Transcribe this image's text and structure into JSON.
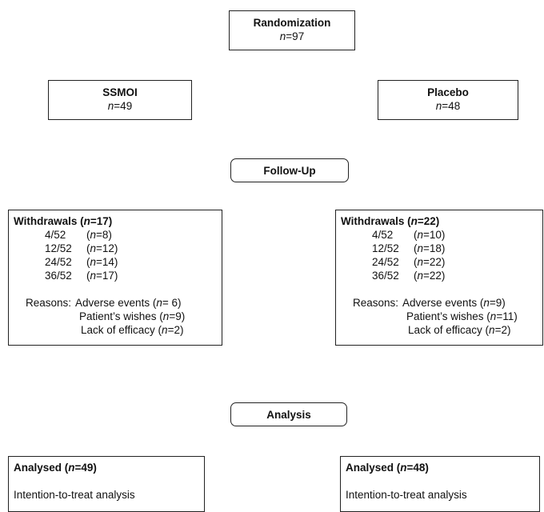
{
  "randomization": {
    "title": "Randomization",
    "n_prefix": "n",
    "n_suffix": "=97"
  },
  "arms": [
    {
      "title": "SSMOI",
      "n_prefix": "n",
      "n_suffix": "=49",
      "withdrawals": {
        "label": "Withdrawals (",
        "n_prefix": "n",
        "n_suffix": "=17)",
        "rows": [
          {
            "time": "4/52",
            "open": "(",
            "n_prefix": "n",
            "n_suffix": "=8)"
          },
          {
            "time": "12/52",
            "open": "(",
            "n_prefix": "n",
            "n_suffix": "=12)"
          },
          {
            "time": "24/52",
            "open": "(",
            "n_prefix": "n",
            "n_suffix": "=14)"
          },
          {
            "time": "36/52",
            "open": "(",
            "n_prefix": "n",
            "n_suffix": "=17)"
          }
        ],
        "reasons_label": "Reasons:",
        "reasons": [
          {
            "text": "Adverse events (",
            "n_prefix": "n",
            "n_suffix": "= 6)"
          },
          {
            "text": "Patient’s wishes (",
            "n_prefix": "n",
            "n_suffix": "=9)"
          },
          {
            "text": "Lack of efficacy (",
            "n_prefix": "n",
            "n_suffix": "=2)"
          }
        ]
      },
      "analysed": {
        "label": "Analysed (",
        "n_prefix": "n",
        "n_suffix": "=49)",
        "text": "Intention-to-treat analysis"
      }
    },
    {
      "title": "Placebo",
      "n_prefix": "n",
      "n_suffix": "=48",
      "withdrawals": {
        "label": "Withdrawals (",
        "n_prefix": "n",
        "n_suffix": "=22)",
        "rows": [
          {
            "time": "4/52",
            "open": "(",
            "n_prefix": "n",
            "n_suffix": "=10)"
          },
          {
            "time": "12/52",
            "open": "(",
            "n_prefix": "n",
            "n_suffix": "=18)"
          },
          {
            "time": "24/52",
            "open": "(",
            "n_prefix": "n",
            "n_suffix": "=22)"
          },
          {
            "time": "36/52",
            "open": "(",
            "n_prefix": "n",
            "n_suffix": "=22)"
          }
        ],
        "reasons_label": "Reasons:",
        "reasons": [
          {
            "text": "Adverse events (",
            "n_prefix": "n",
            "n_suffix": "=9)"
          },
          {
            "text": "Patient’s wishes (",
            "n_prefix": "n",
            "n_suffix": "=11)"
          },
          {
            "text": "Lack of efficacy (",
            "n_prefix": "n",
            "n_suffix": "=2)"
          }
        ]
      },
      "analysed": {
        "label": "Analysed (",
        "n_prefix": "n",
        "n_suffix": "=48)",
        "text": "Intention-to-treat analysis"
      }
    }
  ],
  "stages": {
    "follow_up": "Follow-Up",
    "analysis": "Analysis"
  }
}
